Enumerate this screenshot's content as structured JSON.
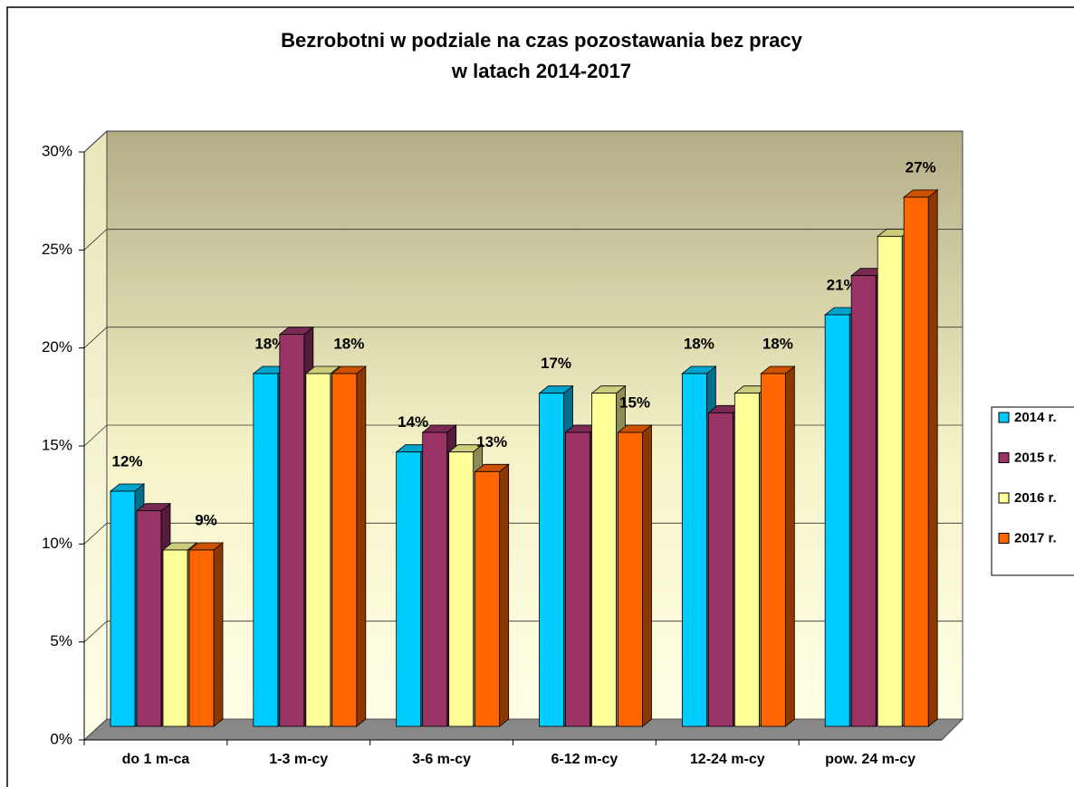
{
  "chart_data": {
    "type": "bar3d",
    "title": [
      "Bezrobotni w podziale na czas pozostawania bez pracy",
      "w latach  2014-2017"
    ],
    "categories": [
      "do 1 m-ca",
      "1-3 m-cy",
      "3-6 m-cy",
      "6-12 m-cy",
      "12-24 m-cy",
      "pow. 24 m-cy"
    ],
    "series": [
      {
        "name": "2014 r.",
        "color": "#00ccff",
        "values": [
          12,
          18,
          14,
          17,
          18,
          21
        ],
        "value_labels": [
          "12%",
          "18%",
          "14%",
          "17%",
          "18%",
          "21%"
        ]
      },
      {
        "name": "2015 r.",
        "color": "#993366",
        "values": [
          11,
          20,
          15,
          15,
          16,
          23
        ]
      },
      {
        "name": "2016 r.",
        "color": "#ffff99",
        "values": [
          9,
          18,
          14,
          17,
          17,
          25
        ]
      },
      {
        "name": "2017 r.",
        "color": "#ff6600",
        "values": [
          9,
          18,
          13,
          15,
          18,
          27
        ],
        "value_labels": [
          "9%",
          "18%",
          "13%",
          "15%",
          "18%",
          "27%"
        ]
      }
    ],
    "ylim": [
      0,
      30
    ],
    "yticks": [
      {
        "value": 0,
        "label": "0%"
      },
      {
        "value": 5,
        "label": "5%"
      },
      {
        "value": 10,
        "label": "10%"
      },
      {
        "value": 15,
        "label": "15%"
      },
      {
        "value": 20,
        "label": "20%"
      },
      {
        "value": 25,
        "label": "25%"
      },
      {
        "value": 30,
        "label": "30%"
      }
    ],
    "grid": true,
    "legend": "right"
  }
}
